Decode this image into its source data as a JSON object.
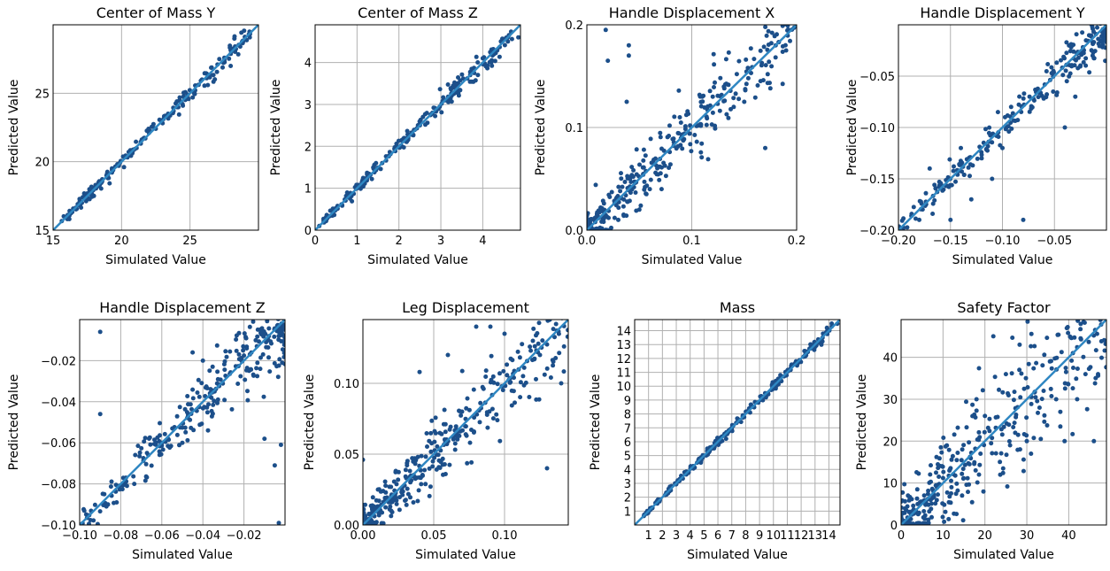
{
  "colors": {
    "points": "#1c4f8a",
    "fit_line": "#2f87c2",
    "grid": "#b0b0b0",
    "frame": "#000000"
  },
  "chart_data": [
    {
      "type": "scatter",
      "title": "Center of Mass Y",
      "xlabel": "Simulated Value",
      "ylabel": "Predicted Value",
      "xlim": [
        15,
        30
      ],
      "ylim": [
        15,
        30
      ],
      "xticks": [
        15,
        20,
        25
      ],
      "yticks": [
        15,
        20,
        25
      ],
      "xtick_labels": [
        "15",
        "20",
        "25"
      ],
      "ytick_labels": [
        "15",
        "20",
        "25"
      ],
      "grid": true,
      "reference_line": "y=x",
      "spread": 0.03,
      "n_points": 190,
      "points_x": [
        16.2,
        16.8,
        17.1,
        17.5,
        18.0,
        18.4,
        18.9,
        19.3,
        19.8,
        20.2,
        20.7,
        21.1,
        21.6,
        22.0,
        22.5,
        22.9,
        23.4,
        23.8,
        24.3,
        24.8,
        25.3,
        26.3
      ],
      "points_y": [
        16.4,
        16.9,
        17.0,
        17.6,
        18.1,
        18.3,
        19.0,
        19.4,
        19.7,
        20.3,
        20.8,
        21.0,
        21.7,
        22.1,
        22.4,
        23.0,
        23.5,
        23.7,
        24.4,
        24.7,
        25.0,
        25.6
      ]
    },
    {
      "type": "scatter",
      "title": "Center of Mass Z",
      "xlabel": "Simulated Value",
      "ylabel": "Predicted Value",
      "xlim": [
        0,
        4.9
      ],
      "ylim": [
        0,
        4.9
      ],
      "xticks": [
        0,
        1,
        2,
        3,
        4
      ],
      "yticks": [
        0,
        1,
        2,
        3,
        4
      ],
      "xtick_labels": [
        "0",
        "1",
        "2",
        "3",
        "4"
      ],
      "ytick_labels": [
        "0",
        "1",
        "2",
        "3",
        "4"
      ],
      "grid": true,
      "reference_line": "y=x",
      "spread": 0.03,
      "n_points": 220,
      "points_x": [
        0.1,
        0.3,
        0.5,
        0.8,
        1.0,
        1.3,
        1.6,
        1.9,
        2.2,
        2.5,
        2.8,
        3.1,
        3.4,
        3.7,
        4.0,
        4.2,
        4.6,
        4.85
      ],
      "points_y": [
        0.1,
        0.3,
        0.5,
        0.8,
        1.0,
        1.3,
        1.6,
        1.9,
        2.2,
        2.5,
        2.8,
        3.1,
        3.5,
        3.7,
        4.1,
        4.0,
        4.5,
        4.6
      ]
    },
    {
      "type": "scatter",
      "title": "Handle Displacement X",
      "xlabel": "Simulated Value",
      "ylabel": "Predicted Value",
      "xlim": [
        0,
        0.2
      ],
      "ylim": [
        0,
        0.2
      ],
      "xticks": [
        0,
        0.1,
        0.2
      ],
      "yticks": [
        0,
        0.1,
        0.2
      ],
      "xtick_labels": [
        "0.0",
        "0.1",
        "0.2"
      ],
      "ytick_labels": [
        "0.0",
        "0.1",
        "0.2"
      ],
      "grid": true,
      "reference_line": "y=x",
      "spread": 0.13,
      "n_points": 320,
      "points_x": [
        0.018,
        0.02,
        0.04,
        0.04,
        0.038,
        0.11,
        0.12,
        0.14,
        0.15,
        0.17,
        0.18,
        0.19,
        0.02,
        0.03,
        0.05,
        0.06
      ],
      "points_y": [
        0.195,
        0.165,
        0.18,
        0.17,
        0.125,
        0.13,
        0.13,
        0.12,
        0.125,
        0.08,
        0.18,
        0.175,
        0.0,
        0.01,
        0.02,
        0.04
      ]
    },
    {
      "type": "scatter",
      "title": "Handle Displacement Y",
      "xlabel": "Simulated Value",
      "ylabel": "Predicted Value",
      "xlim": [
        -0.2,
        0
      ],
      "ylim": [
        -0.2,
        0
      ],
      "xticks": [
        -0.2,
        -0.15,
        -0.1,
        -0.05
      ],
      "yticks": [
        -0.2,
        -0.15,
        -0.1,
        -0.05
      ],
      "xtick_labels": [
        "−0.20",
        "−0.15",
        "−0.10",
        "−0.05"
      ],
      "ytick_labels": [
        "−0.20",
        "−0.15",
        "−0.10",
        "−0.05"
      ],
      "grid": true,
      "reference_line": "y=x",
      "spread": 0.06,
      "n_points": 240,
      "points_x": [
        -0.18,
        -0.17,
        -0.15,
        -0.14,
        -0.13,
        -0.11,
        -0.08,
        -0.04,
        -0.03,
        -0.12,
        -0.1
      ],
      "points_y": [
        -0.19,
        -0.14,
        -0.19,
        -0.12,
        -0.17,
        -0.15,
        -0.19,
        -0.1,
        -0.07,
        -0.13,
        -0.12
      ]
    },
    {
      "type": "scatter",
      "title": "Handle Displacement Z",
      "xlabel": "Simulated Value",
      "ylabel": "Predicted Value",
      "xlim": [
        -0.1,
        0
      ],
      "ylim": [
        -0.1,
        0
      ],
      "xticks": [
        -0.1,
        -0.08,
        -0.06,
        -0.04,
        -0.02
      ],
      "yticks": [
        -0.1,
        -0.08,
        -0.06,
        -0.04,
        -0.02
      ],
      "xtick_labels": [
        "−0.10",
        "−0.08",
        "−0.06",
        "−0.04",
        "−0.02"
      ],
      "ytick_labels": [
        "−0.10",
        "−0.08",
        "−0.06",
        "−0.04",
        "−0.02"
      ],
      "grid": true,
      "reference_line": "y=x",
      "spread": 0.09,
      "n_points": 300,
      "points_x": [
        -0.09,
        -0.09,
        -0.088,
        -0.087,
        -0.077,
        -0.06,
        -0.05,
        -0.045,
        -0.04,
        -0.01,
        -0.005,
        -0.002,
        -0.003
      ],
      "points_y": [
        -0.006,
        -0.046,
        -0.085,
        -0.091,
        -0.081,
        -0.06,
        -0.06,
        -0.016,
        -0.02,
        -0.058,
        -0.071,
        -0.061,
        -0.099
      ]
    },
    {
      "type": "scatter",
      "title": "Leg Displacement",
      "xlabel": "Simulated Value",
      "ylabel": "Predicted Value",
      "xlim": [
        0,
        0.145
      ],
      "ylim": [
        0,
        0.145
      ],
      "xticks": [
        0,
        0.05,
        0.1
      ],
      "yticks": [
        0,
        0.05,
        0.1
      ],
      "xtick_labels": [
        "0.00",
        "0.05",
        "0.10"
      ],
      "ytick_labels": [
        "0.00",
        "0.05",
        "0.10"
      ],
      "grid": true,
      "reference_line": "y=x",
      "spread": 0.13,
      "n_points": 360,
      "points_x": [
        0.0,
        0.02,
        0.04,
        0.08,
        0.09,
        0.1,
        0.12,
        0.125,
        0.13,
        0.14,
        0.06,
        0.07
      ],
      "points_y": [
        0.046,
        0.01,
        0.108,
        0.14,
        0.14,
        0.135,
        0.13,
        0.12,
        0.04,
        0.1,
        0.12,
        0.08
      ]
    },
    {
      "type": "scatter",
      "title": "Mass",
      "xlabel": "Simulated Value",
      "ylabel": "Predicted Value",
      "xlim": [
        0,
        14.8
      ],
      "ylim": [
        0,
        14.8
      ],
      "xticks": [
        1,
        2,
        3,
        4,
        5,
        6,
        7,
        8,
        9,
        10,
        11,
        12,
        13,
        14
      ],
      "yticks": [
        1,
        2,
        3,
        4,
        5,
        6,
        7,
        8,
        9,
        10,
        11,
        12,
        13,
        14
      ],
      "xtick_labels": [
        "1",
        "2",
        "3",
        "4",
        "5",
        "6",
        "7",
        "8",
        "9",
        "10",
        "11",
        "12",
        "13",
        "14"
      ],
      "ytick_labels": [
        "1",
        "2",
        "3",
        "4",
        "5",
        "6",
        "7",
        "8",
        "9",
        "10",
        "11",
        "12",
        "13",
        "14"
      ],
      "grid": true,
      "reference_line": "y=x",
      "spread": 0.015,
      "n_points": 220,
      "points_x": [
        2.6,
        3.1,
        3.9,
        4.6,
        5.4,
        6.2,
        7.0,
        7.8,
        8.6,
        9.4,
        10.2,
        11.0,
        11.8,
        12.6,
        13.4,
        14.2,
        14.6
      ],
      "points_y": [
        2.5,
        3.2,
        3.8,
        4.7,
        5.3,
        6.3,
        6.9,
        7.9,
        8.5,
        9.5,
        10.1,
        11.1,
        11.7,
        12.7,
        13.3,
        14.3,
        14.5
      ]
    },
    {
      "type": "scatter",
      "title": "Safety Factor",
      "xlabel": "Simulated Value",
      "ylabel": "Predicted Value",
      "xlim": [
        0,
        49
      ],
      "ylim": [
        0,
        49
      ],
      "xticks": [
        0,
        10,
        20,
        30,
        40
      ],
      "yticks": [
        0,
        10,
        20,
        30,
        40
      ],
      "xtick_labels": [
        "0",
        "10",
        "20",
        "30",
        "40"
      ],
      "ytick_labels": [
        "0",
        "10",
        "20",
        "30",
        "40"
      ],
      "grid": true,
      "reference_line": "y=x",
      "spread": 0.22,
      "n_points": 380,
      "points_x": [
        22,
        25,
        26,
        30,
        31,
        34,
        37,
        38,
        39,
        41,
        42,
        44,
        46,
        47,
        20,
        18
      ],
      "points_y": [
        45,
        36,
        19,
        20,
        17,
        32,
        30,
        27,
        20,
        41,
        30,
        36,
        20,
        36,
        26,
        30
      ]
    }
  ]
}
